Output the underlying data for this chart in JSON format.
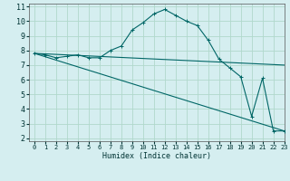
{
  "xlabel": "Humidex (Indice chaleur)",
  "xlim": [
    -0.5,
    23
  ],
  "ylim": [
    1.8,
    11.2
  ],
  "yticks": [
    2,
    3,
    4,
    5,
    6,
    7,
    8,
    9,
    10,
    11
  ],
  "xticks": [
    0,
    1,
    2,
    3,
    4,
    5,
    6,
    7,
    8,
    9,
    10,
    11,
    12,
    13,
    14,
    15,
    16,
    17,
    18,
    19,
    20,
    21,
    22,
    23
  ],
  "bg_color": "#d5eef0",
  "grid_color": "#b0d8cc",
  "line_color": "#006666",
  "line1_x": [
    0,
    1,
    2,
    3,
    4,
    5,
    6,
    7,
    8,
    9,
    10,
    11,
    12,
    13,
    14,
    15,
    16,
    17,
    18,
    19,
    20,
    21,
    22,
    23
  ],
  "line1_y": [
    7.8,
    7.7,
    7.5,
    7.6,
    7.7,
    7.5,
    7.5,
    8.0,
    8.3,
    9.4,
    9.9,
    10.5,
    10.8,
    10.4,
    10.0,
    9.7,
    8.7,
    7.4,
    6.8,
    6.2,
    3.5,
    6.1,
    2.5,
    2.5
  ],
  "line2_x": [
    0,
    23
  ],
  "line2_y": [
    7.8,
    2.5
  ],
  "line3_x": [
    0,
    23
  ],
  "line3_y": [
    7.8,
    7.0
  ]
}
